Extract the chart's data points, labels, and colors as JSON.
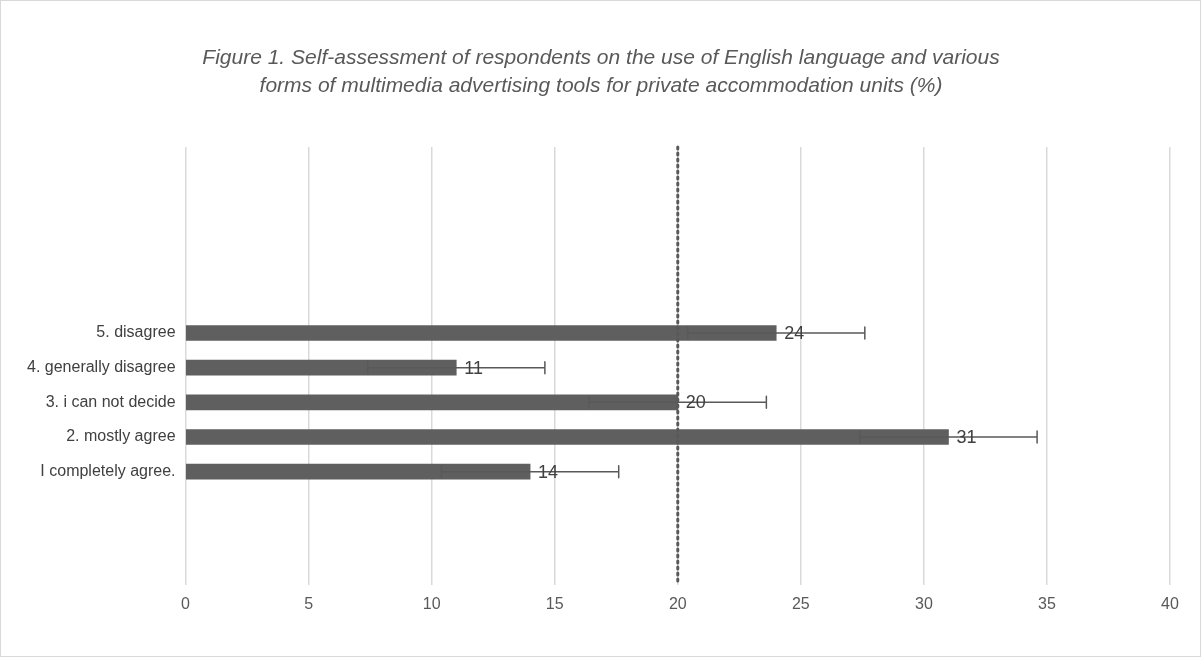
{
  "chart_data": {
    "type": "bar",
    "orientation": "horizontal",
    "title": "Figure 1. Self-assessment of respondents on the use of English language and various forms of multimedia advertising tools for private accommodation units (%)",
    "categories": [
      "5. disagree",
      "4. generally disagree",
      "3. i can not decide",
      "2. mostly agree",
      "I completely agree."
    ],
    "values": [
      24,
      11,
      20,
      31,
      14
    ],
    "color": "#5f5f5f",
    "errors": [
      3.6,
      3.6,
      3.6,
      3.6,
      3.6
    ],
    "data_labels": true,
    "xlim": [
      0,
      40
    ],
    "xticks": [
      0,
      5,
      10,
      15,
      20,
      25,
      30,
      35,
      40
    ],
    "grid": "x",
    "legend": false,
    "ref_lines": [
      {
        "axis": "x",
        "value": 20,
        "color": "#595959",
        "line_style": "dotted"
      }
    ]
  }
}
